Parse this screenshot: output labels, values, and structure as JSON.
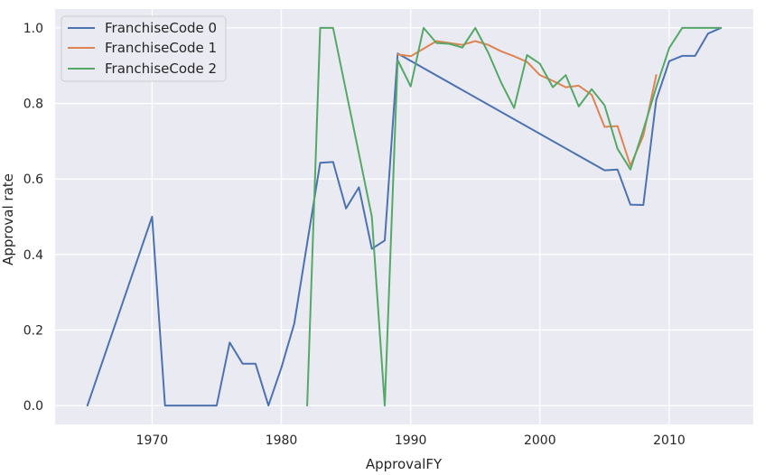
{
  "chart_data": {
    "type": "line",
    "title": "",
    "xlabel": "ApprovalFY",
    "ylabel": "Approval rate",
    "xlim": [
      1962.5,
      2016.5
    ],
    "ylim": [
      -0.05,
      1.05
    ],
    "xticks": [
      1970,
      1980,
      1990,
      2000,
      2010
    ],
    "yticks": [
      0.0,
      0.2,
      0.4,
      0.6,
      0.8,
      1.0
    ],
    "grid": true,
    "legend_position": "top-left",
    "series": [
      {
        "name": "FranchiseCode 0",
        "color": "#4c72b0",
        "x": [
          1965,
          1970,
          1971,
          1972,
          1973,
          1974,
          1975,
          1976,
          1977,
          1978,
          1979,
          1980,
          1981,
          1982,
          1983,
          1984,
          1985,
          1986,
          1987,
          1988,
          1989,
          2005,
          2006,
          2007,
          2008,
          2009,
          2010,
          2011,
          2012,
          2013,
          2014
        ],
        "y": [
          0.0,
          0.5,
          0.0,
          0.0,
          0.0,
          0.0,
          0.0,
          0.167,
          0.111,
          0.111,
          0.0,
          0.1,
          0.217,
          0.43,
          0.643,
          0.645,
          0.522,
          0.578,
          0.415,
          0.437,
          0.932,
          0.623,
          0.625,
          0.532,
          0.531,
          0.81,
          0.912,
          0.926,
          0.926,
          0.985,
          1.0
        ]
      },
      {
        "name": "FranchiseCode 1",
        "color": "#dd8452",
        "x": [
          1989,
          1990,
          1991,
          1992,
          1993,
          1994,
          1995,
          1996,
          1997,
          1998,
          1999,
          2000,
          2001,
          2002,
          2003,
          2004,
          2005,
          2006,
          2007,
          2008,
          2009
        ],
        "y": [
          0.93,
          0.925,
          0.945,
          0.965,
          0.96,
          0.955,
          0.965,
          0.955,
          0.938,
          0.925,
          0.91,
          0.875,
          0.86,
          0.843,
          0.847,
          0.823,
          0.738,
          0.74,
          0.635,
          0.715,
          0.875
        ]
      },
      {
        "name": "FranchiseCode 2",
        "color": "#55a868",
        "x": [
          1982,
          1983,
          1984,
          1985,
          1986,
          1987,
          1988,
          1989,
          1990,
          1991,
          1992,
          1993,
          1994,
          1995,
          1996,
          1997,
          1998,
          1999,
          2000,
          2001,
          2002,
          2003,
          2004,
          2005,
          2006,
          2007,
          2008,
          2009,
          2010,
          2011,
          2012,
          2013,
          2014
        ],
        "y": [
          0.0,
          1.0,
          1.0,
          0.833,
          0.667,
          0.5,
          0.0,
          0.915,
          0.845,
          1.0,
          0.96,
          0.958,
          0.948,
          1.0,
          0.935,
          0.855,
          0.788,
          0.928,
          0.905,
          0.843,
          0.875,
          0.792,
          0.838,
          0.795,
          0.68,
          0.625,
          0.73,
          0.843,
          0.947,
          1.0,
          1.0,
          1.0,
          1.0
        ]
      }
    ]
  }
}
